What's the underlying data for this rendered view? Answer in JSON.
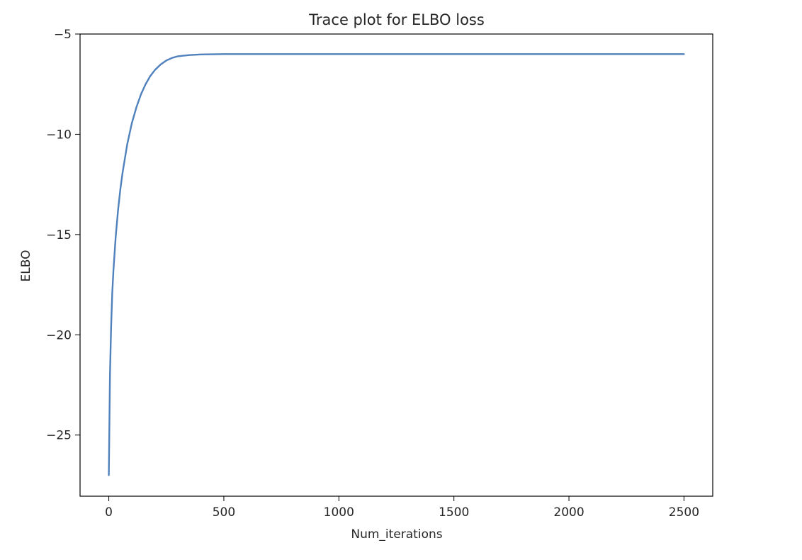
{
  "chart_data": {
    "type": "line",
    "title": "Trace plot for ELBO loss",
    "xlabel": "Num_iterations",
    "ylabel": "ELBO",
    "xlim": [
      -125,
      2625
    ],
    "ylim": [
      -28.05,
      -5.0
    ],
    "x_ticks": [
      0,
      500,
      1000,
      1500,
      2000,
      2500
    ],
    "y_ticks": [
      -25,
      -20,
      -15,
      -10,
      -5
    ],
    "x_tick_labels": [
      "0",
      "500",
      "1000",
      "1500",
      "2000",
      "2500"
    ],
    "y_tick_labels": [
      "−25",
      "−20",
      "−15",
      "−10",
      "−5"
    ],
    "grid": false,
    "series": [
      {
        "color": "#4f81bd",
        "x": [
          0,
          5,
          10,
          15,
          20,
          30,
          40,
          50,
          60,
          80,
          100,
          120,
          140,
          160,
          180,
          200,
          225,
          250,
          275,
          300,
          350,
          400,
          450,
          500,
          600,
          750,
          1000,
          1250,
          1500,
          1750,
          2000,
          2250,
          2500
        ],
        "y": [
          -27.0,
          -22.0,
          -19.6,
          -17.9,
          -16.8,
          -15.1,
          -13.8,
          -12.75,
          -11.9,
          -10.5,
          -9.45,
          -8.65,
          -8.0,
          -7.5,
          -7.1,
          -6.8,
          -6.52,
          -6.32,
          -6.19,
          -6.11,
          -6.05,
          -6.02,
          -6.01,
          -6.0,
          -6.0,
          -6.0,
          -6.0,
          -6.0,
          -6.0,
          -6.0,
          -6.0,
          -6.0,
          -6.0
        ]
      }
    ]
  }
}
